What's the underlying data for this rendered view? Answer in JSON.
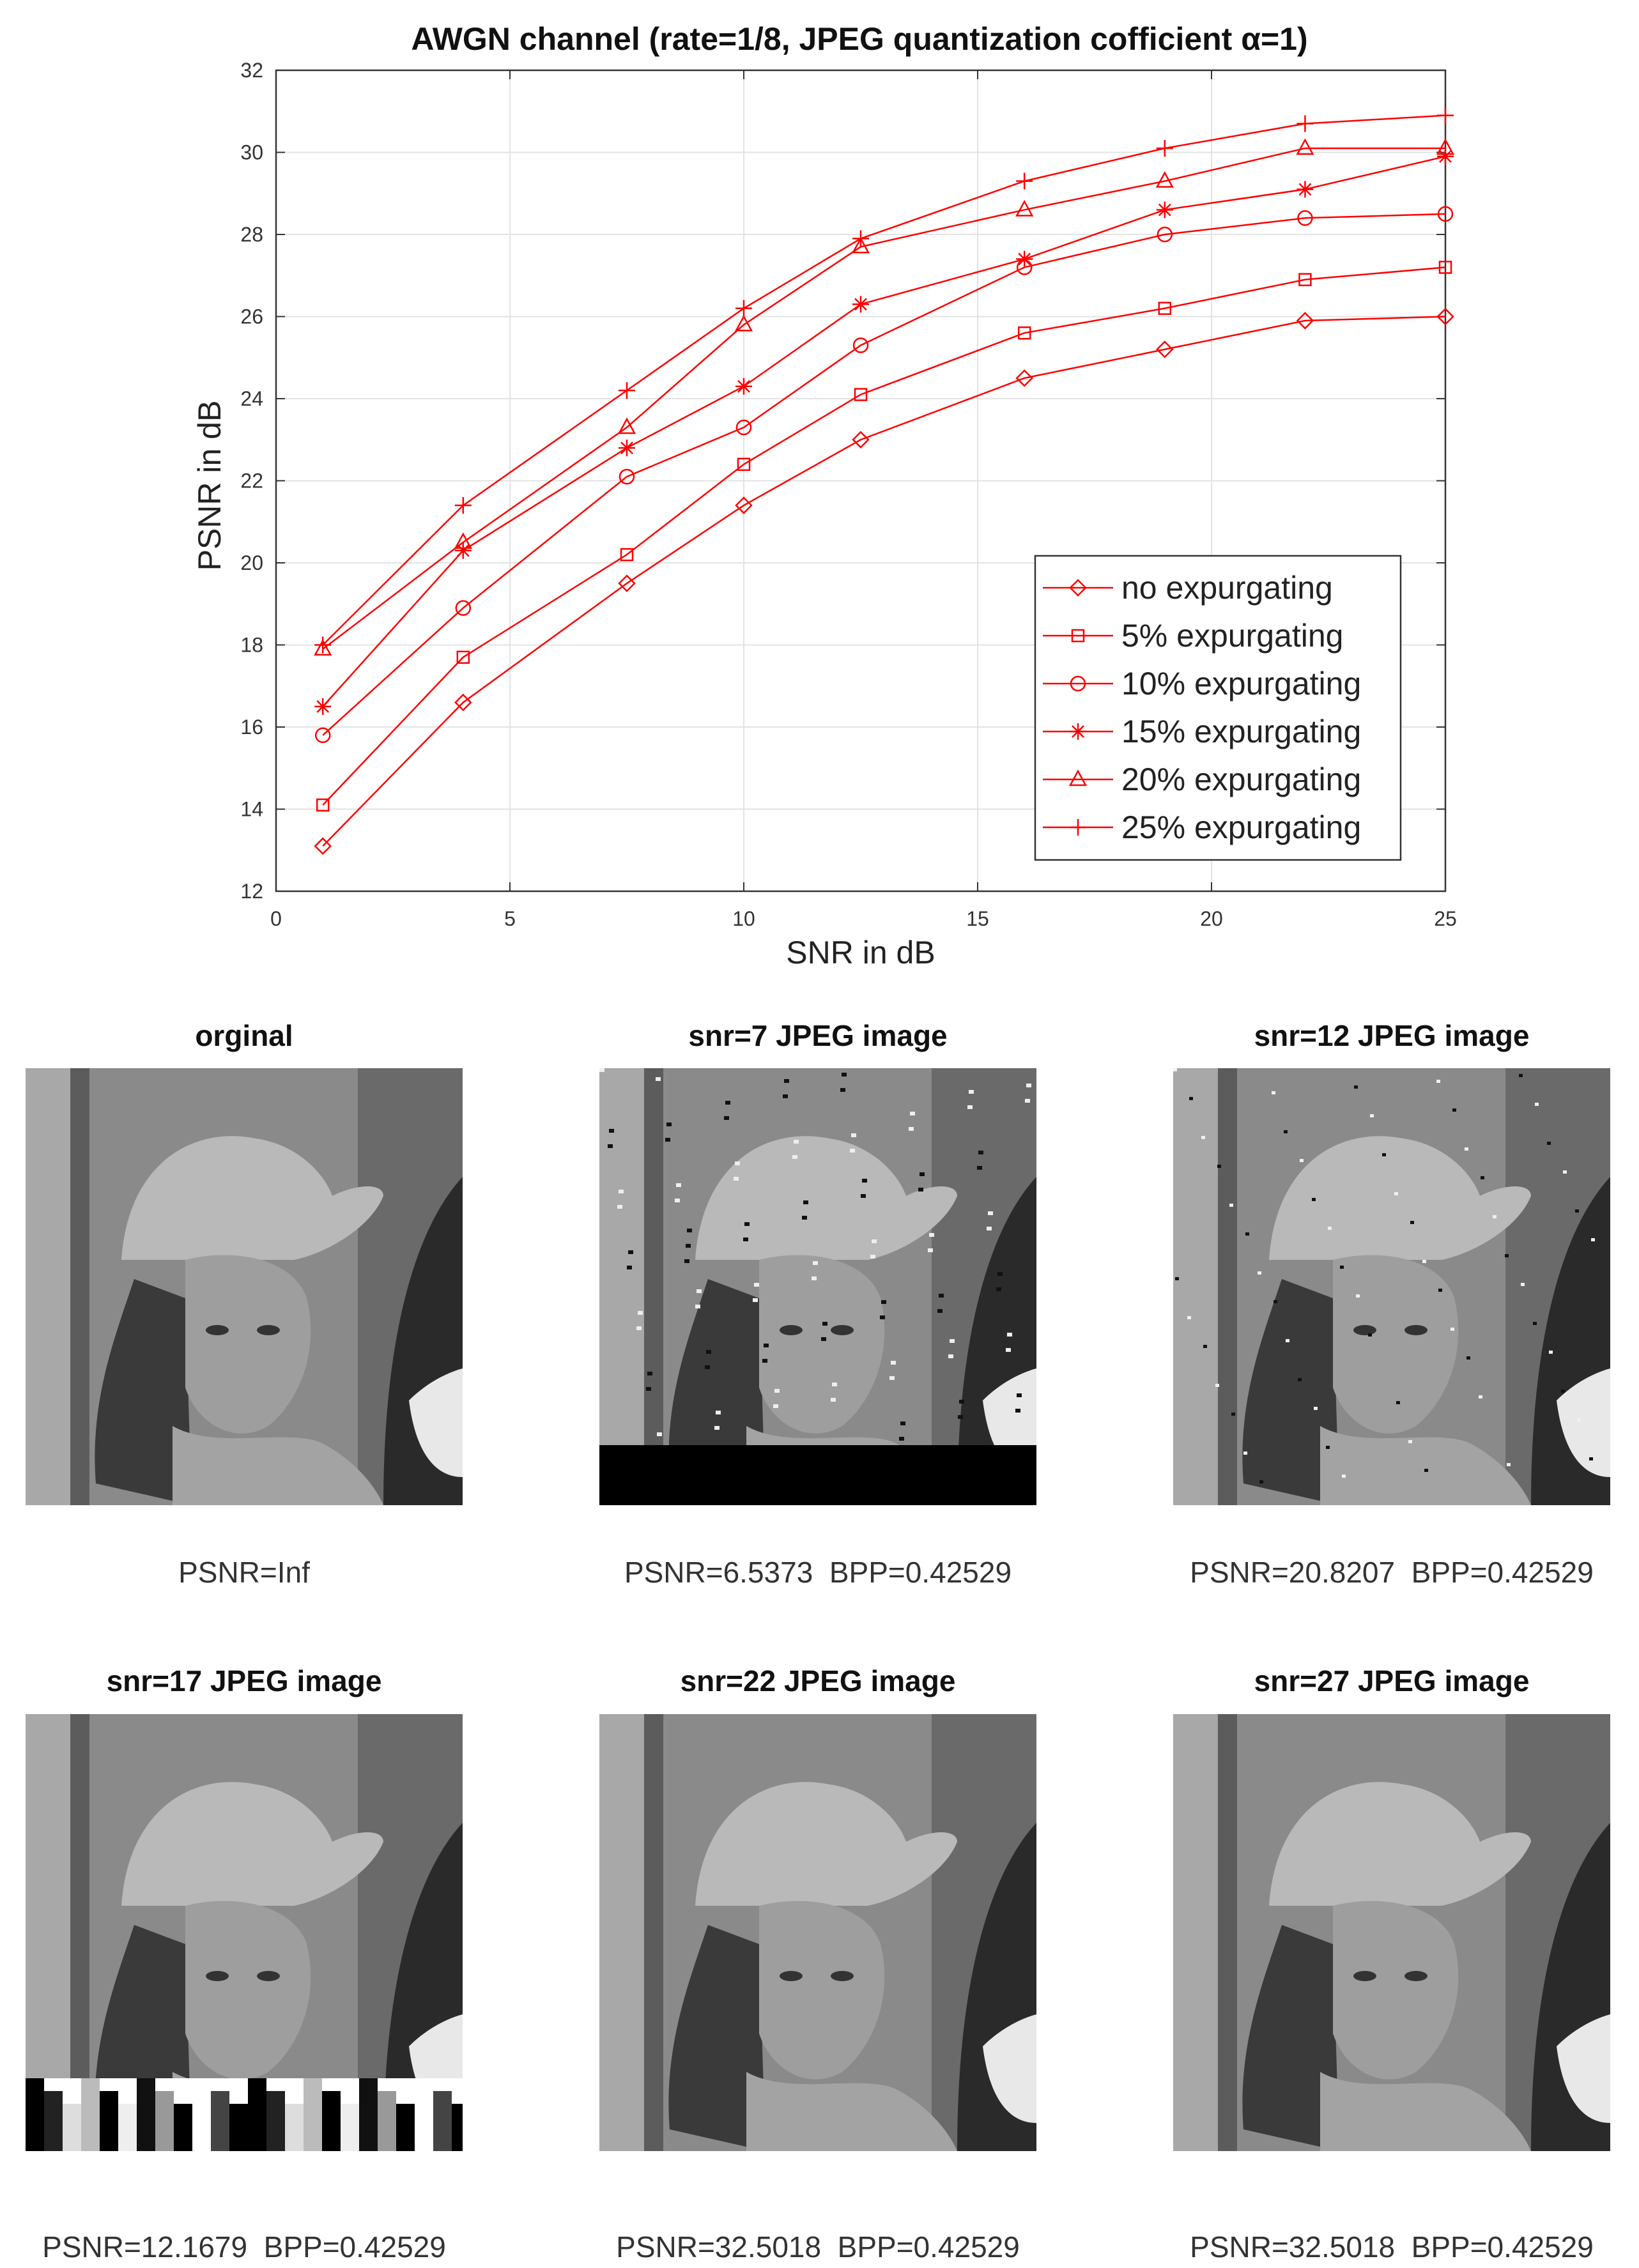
{
  "chart_data": {
    "type": "line",
    "title": "AWGN channel (rate=1/8, JPEG quantization cofficient α=1)",
    "xlabel": "SNR in dB",
    "ylabel": "PSNR in dB",
    "xlim": [
      0,
      25
    ],
    "ylim": [
      12,
      32
    ],
    "xticks": [
      0,
      5,
      10,
      15,
      20,
      25
    ],
    "yticks": [
      12,
      14,
      16,
      18,
      20,
      22,
      24,
      26,
      28,
      30,
      32
    ],
    "grid": true,
    "legend_position": "bottom-right",
    "line_color": "#ff0000",
    "x": [
      1,
      4,
      7.5,
      10,
      12.5,
      16,
      19,
      22,
      25
    ],
    "series": [
      {
        "name": "no expurgating",
        "marker": "diamond",
        "values": [
          13.1,
          16.6,
          19.5,
          21.4,
          23.0,
          24.5,
          25.2,
          25.9,
          26.0
        ]
      },
      {
        "name": "5% expurgating",
        "marker": "square",
        "values": [
          14.1,
          17.7,
          20.2,
          22.4,
          24.1,
          25.6,
          26.2,
          26.9,
          27.2
        ]
      },
      {
        "name": "10% expurgating",
        "marker": "circle",
        "values": [
          15.8,
          18.9,
          22.1,
          23.3,
          25.3,
          27.2,
          28.0,
          28.4,
          28.5
        ]
      },
      {
        "name": "15% expurgating",
        "marker": "asterisk",
        "values": [
          16.5,
          20.3,
          22.8,
          24.3,
          26.3,
          27.4,
          28.6,
          29.1,
          29.9
        ]
      },
      {
        "name": "20% expurgating",
        "marker": "triangle",
        "values": [
          17.9,
          20.5,
          23.3,
          25.8,
          27.7,
          28.6,
          29.3,
          30.1,
          30.1
        ]
      },
      {
        "name": "25% expurgating",
        "marker": "plus",
        "values": [
          18.0,
          21.4,
          24.2,
          26.2,
          27.9,
          29.3,
          30.1,
          30.7,
          30.9
        ]
      }
    ]
  },
  "panels": [
    {
      "title": "orginal",
      "caption": "PSNR=Inf",
      "corruption": "none"
    },
    {
      "title": "snr=7 JPEG image",
      "caption": "PSNR=6.5373  BPP=0.42529",
      "corruption": "heavy"
    },
    {
      "title": "snr=12 JPEG image",
      "caption": "PSNR=20.8207  BPP=0.42529",
      "corruption": "medium"
    },
    {
      "title": "snr=17 JPEG image",
      "caption": "PSNR=12.1679  BPP=0.42529",
      "corruption": "bottom-strip"
    },
    {
      "title": "snr=22 JPEG image",
      "caption": "PSNR=32.5018  BPP=0.42529",
      "corruption": "none"
    },
    {
      "title": "snr=27 JPEG image",
      "caption": "PSNR=32.5018  BPP=0.42529",
      "corruption": "none"
    }
  ]
}
